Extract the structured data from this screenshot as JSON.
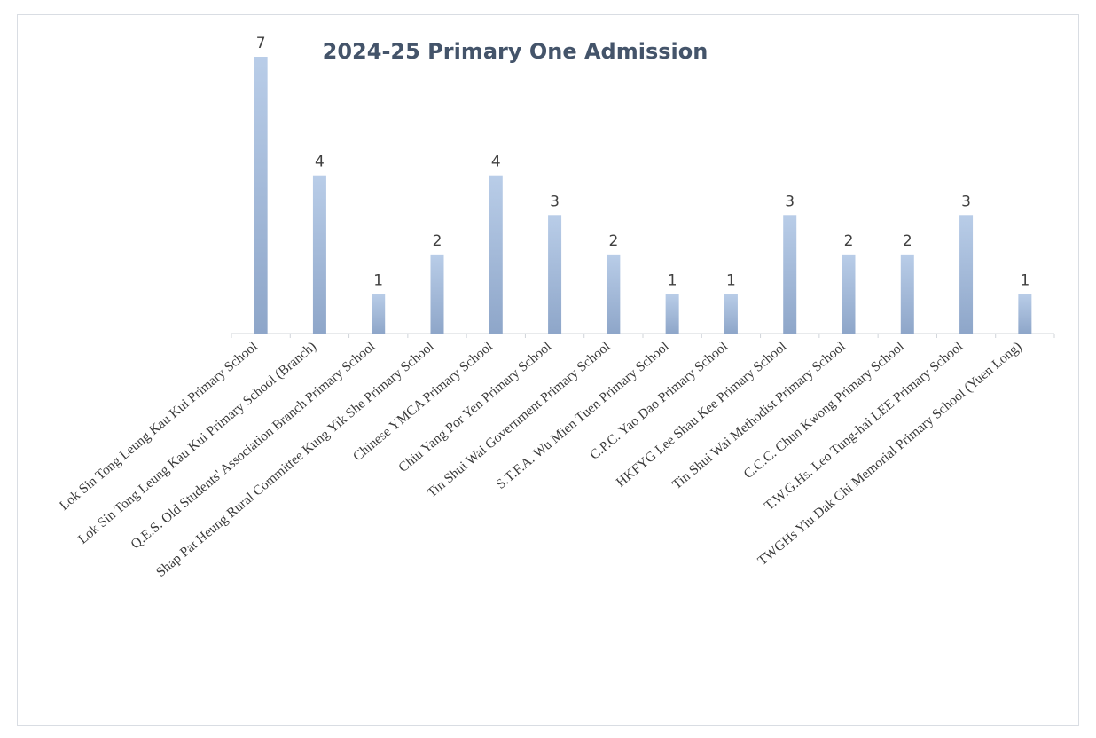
{
  "chart_data": {
    "type": "bar",
    "title": "2024-25 Primary One Admission",
    "xlabel": "",
    "ylabel": "",
    "ylim": [
      0,
      7
    ],
    "grid": false,
    "legend": "none",
    "categories": [
      "Lok Sin Tong Leung Kau Kui Primary School",
      "Lok Sin Tong Leung Kau Kui Primary School (Branch)",
      "Q.E.S. Old Students' Association Branch Primary School",
      "Shap Pat Heung Rural Committee Kung Yik She Primary School",
      "Chinese YMCA Primary School",
      "Chiu Yang Por Yen Primary School",
      "Tin Shui Wai Government Primary School",
      "S.T.F.A. Wu Mien Tuen Primary School",
      "C.P.C. Yao Dao Primary School",
      "HKFYG Lee Shau Kee Primary School",
      "Tin Shui Wai Methodist Primary School",
      "C.C.C. Chun Kwong Primary School",
      "T.W.G.Hs. Leo Tung-hai LEE Primary School",
      "TWGHs Yiu Dak Chi Memorial Primary School (Yuen Long)"
    ],
    "values": [
      7,
      4,
      1,
      2,
      4,
      3,
      2,
      1,
      1,
      3,
      2,
      2,
      3,
      1
    ],
    "colors": {
      "bar_top": "#b9cde8",
      "bar_bottom": "#8ea6c9",
      "axis": "#d0d4da",
      "title": "#44546a",
      "label": "#404040"
    }
  }
}
